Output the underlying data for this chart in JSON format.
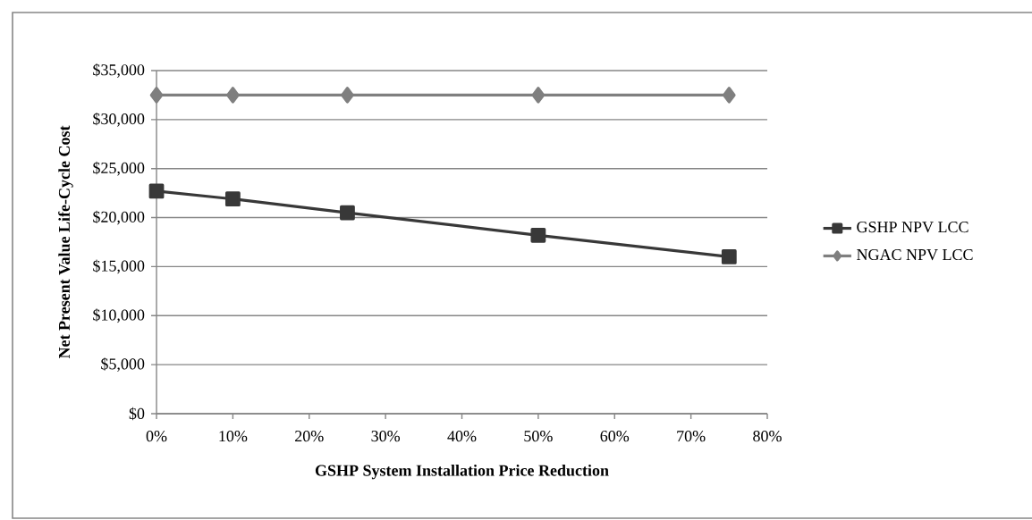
{
  "chart_data": {
    "type": "line",
    "xlabel": "GSHP System Installation Price Reduction",
    "ylabel": "Net Present Value Life-Cycle Cost",
    "x": [
      0,
      10,
      25,
      50,
      75
    ],
    "series": [
      {
        "name": "GSHP NPV LCC",
        "color": "#383838",
        "marker": "square",
        "values": [
          22700,
          21900,
          20500,
          18200,
          16000
        ]
      },
      {
        "name": "NGAC NPV LCC",
        "color": "#7f7f7f",
        "marker": "diamond",
        "values": [
          32500,
          32500,
          32500,
          32500,
          32500
        ]
      }
    ],
    "xlim": [
      0,
      80
    ],
    "xticks": [
      {
        "value": 0,
        "label": "0%"
      },
      {
        "value": 10,
        "label": "10%"
      },
      {
        "value": 20,
        "label": "20%"
      },
      {
        "value": 30,
        "label": "30%"
      },
      {
        "value": 40,
        "label": "40%"
      },
      {
        "value": 50,
        "label": "50%"
      },
      {
        "value": 60,
        "label": "60%"
      },
      {
        "value": 70,
        "label": "70%"
      },
      {
        "value": 80,
        "label": "80%"
      }
    ],
    "ylim": [
      0,
      35000
    ],
    "yticks": [
      {
        "value": 0,
        "label": "$0"
      },
      {
        "value": 5000,
        "label": "$5,000"
      },
      {
        "value": 10000,
        "label": "$10,000"
      },
      {
        "value": 15000,
        "label": "$15,000"
      },
      {
        "value": 20000,
        "label": "$20,000"
      },
      {
        "value": 25000,
        "label": "$25,000"
      },
      {
        "value": 30000,
        "label": "$30,000"
      },
      {
        "value": 35000,
        "label": "$35,000"
      }
    ],
    "grid": "y",
    "legend": "right",
    "line_style": "solid"
  }
}
